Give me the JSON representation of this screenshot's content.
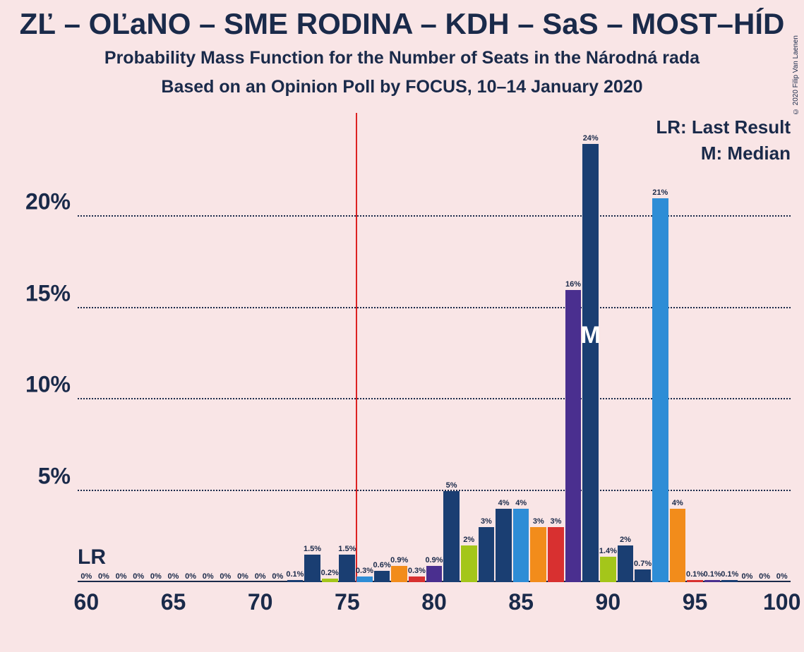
{
  "title": {
    "text": "ZĽ – OĽaNO – SME RODINA – KDH – SaS – MOST–HÍD",
    "fontsize": 42,
    "toppad": 10
  },
  "subtitle1": {
    "text": "Probability Mass Function for the Number of Seats in the Národná rada",
    "fontsize": 25,
    "toppad": 10
  },
  "subtitle2": {
    "text": "Based on an Opinion Poll by FOCUS, 10–14 January 2020",
    "fontsize": 25,
    "toppad": 12
  },
  "copyright": "© 2020 Filip Van Laenen",
  "legend": {
    "lr": "LR: Last Result",
    "m": "M: Median"
  },
  "lr_label": "LR",
  "m_label": "M",
  "chart": {
    "type": "bar",
    "xlim": [
      59.5,
      100.5
    ],
    "ylim": [
      0,
      25.5
    ],
    "yticks": [
      5,
      10,
      15,
      20
    ],
    "yticklabels": [
      "5%",
      "10%",
      "15%",
      "20%"
    ],
    "xticks": [
      60,
      65,
      70,
      75,
      80,
      85,
      90,
      95,
      100
    ],
    "bar_width": 0.92,
    "grid_color": "#1a2a4a",
    "text_color": "#1a2a4a",
    "lr_line_x": 75.5,
    "lr_line_color": "#dd2222",
    "median_x": 89,
    "m_label_y_share": 0.5,
    "bars": [
      {
        "x": 60,
        "y": 0,
        "label": "0%",
        "color": "#1a3e72"
      },
      {
        "x": 61,
        "y": 0,
        "label": "0%",
        "color": "#1a3e72"
      },
      {
        "x": 62,
        "y": 0,
        "label": "0%",
        "color": "#1a3e72"
      },
      {
        "x": 63,
        "y": 0,
        "label": "0%",
        "color": "#1a3e72"
      },
      {
        "x": 64,
        "y": 0,
        "label": "0%",
        "color": "#1a3e72"
      },
      {
        "x": 65,
        "y": 0,
        "label": "0%",
        "color": "#1a3e72"
      },
      {
        "x": 66,
        "y": 0,
        "label": "0%",
        "color": "#1a3e72"
      },
      {
        "x": 67,
        "y": 0,
        "label": "0%",
        "color": "#1a3e72"
      },
      {
        "x": 68,
        "y": 0,
        "label": "0%",
        "color": "#1a3e72"
      },
      {
        "x": 69,
        "y": 0,
        "label": "0%",
        "color": "#1a3e72"
      },
      {
        "x": 70,
        "y": 0,
        "label": "0%",
        "color": "#1a3e72"
      },
      {
        "x": 71,
        "y": 0,
        "label": "0%",
        "color": "#1a3e72"
      },
      {
        "x": 72,
        "y": 0.1,
        "label": "0.1%",
        "color": "#1a3e72"
      },
      {
        "x": 73,
        "y": 1.5,
        "label": "1.5%",
        "color": "#1a3e72"
      },
      {
        "x": 74,
        "y": 0.2,
        "label": "0.2%",
        "color": "#a4c61a"
      },
      {
        "x": 75,
        "y": 1.5,
        "label": "1.5%",
        "color": "#1a3e72"
      },
      {
        "x": 76,
        "y": 0.3,
        "label": "0.3%",
        "color": "#2e8dd6"
      },
      {
        "x": 77,
        "y": 0.6,
        "label": "0.6%",
        "color": "#1a3e72"
      },
      {
        "x": 78,
        "y": 0.9,
        "label": "0.9%",
        "color": "#f28c1b"
      },
      {
        "x": 79,
        "y": 0.3,
        "label": "0.3%",
        "color": "#d83030"
      },
      {
        "x": 80,
        "y": 0.9,
        "label": "0.9%",
        "color": "#4a2f8f"
      },
      {
        "x": 81,
        "y": 5.0,
        "label": "5%",
        "color": "#1a3e72"
      },
      {
        "x": 82,
        "y": 2.0,
        "label": "2%",
        "color": "#a4c61a"
      },
      {
        "x": 83,
        "y": 3.0,
        "label": "3%",
        "color": "#1a3e72"
      },
      {
        "x": 84,
        "y": 4.0,
        "label": "4%",
        "color": "#1a3e72"
      },
      {
        "x": 85,
        "y": 4.0,
        "label": "4%",
        "color": "#2e8dd6"
      },
      {
        "x": 86,
        "y": 3.0,
        "label": "3%",
        "color": "#f28c1b"
      },
      {
        "x": 87,
        "y": 3.0,
        "label": "3%",
        "color": "#d83030"
      },
      {
        "x": 88,
        "y": 16.0,
        "label": "16%",
        "color": "#4a2f8f"
      },
      {
        "x": 89,
        "y": 24.0,
        "label": "24%",
        "color": "#1a3e72"
      },
      {
        "x": 90,
        "y": 1.4,
        "label": "1.4%",
        "color": "#a4c61a"
      },
      {
        "x": 91,
        "y": 2.0,
        "label": "2%",
        "color": "#1a3e72"
      },
      {
        "x": 92,
        "y": 0.7,
        "label": "0.7%",
        "color": "#1a3e72"
      },
      {
        "x": 93,
        "y": 21.0,
        "label": "21%",
        "color": "#2e8dd6"
      },
      {
        "x": 94,
        "y": 4.0,
        "label": "4%",
        "color": "#f28c1b"
      },
      {
        "x": 95,
        "y": 0.1,
        "label": "0.1%",
        "color": "#d83030"
      },
      {
        "x": 96,
        "y": 0.1,
        "label": "0.1%",
        "color": "#4a2f8f"
      },
      {
        "x": 97,
        "y": 0.1,
        "label": "0.1%",
        "color": "#1a3e72"
      },
      {
        "x": 98,
        "y": 0,
        "label": "0%",
        "color": "#1a3e72"
      },
      {
        "x": 99,
        "y": 0,
        "label": "0%",
        "color": "#1a3e72"
      },
      {
        "x": 100,
        "y": 0,
        "label": "0%",
        "color": "#1a3e72"
      }
    ]
  }
}
